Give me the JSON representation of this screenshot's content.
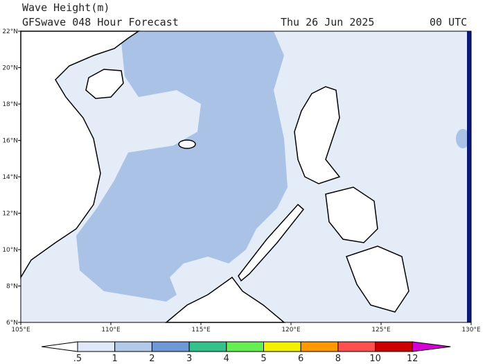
{
  "header": {
    "title": "Wave Height(m)",
    "subtitle": "GFSwave 048 Hour Forecast",
    "date": "Thu 26 Jun 2025",
    "time": "00 UTC"
  },
  "map": {
    "lat_labels": [
      "6°N",
      "8°N",
      "10°N",
      "12°N",
      "14°N",
      "16°N",
      "18°N",
      "20°N",
      "22°N"
    ],
    "lon_labels": [
      "105°E",
      "110°E",
      "115°E",
      "120°E",
      "125°E",
      "130°E"
    ]
  },
  "colorbar": {
    "labels": [
      ".5",
      "1",
      "2",
      "3",
      "4",
      "5",
      "6",
      "8",
      "10",
      "12"
    ],
    "colors": [
      "#ffffff",
      "#dfe9f7",
      "#b3c9ea",
      "#6f98d6",
      "#33c28c",
      "#66ee55",
      "#f5f000",
      "#ff9900",
      "#ff5050",
      "#cc0000",
      "#d400d4"
    ]
  }
}
